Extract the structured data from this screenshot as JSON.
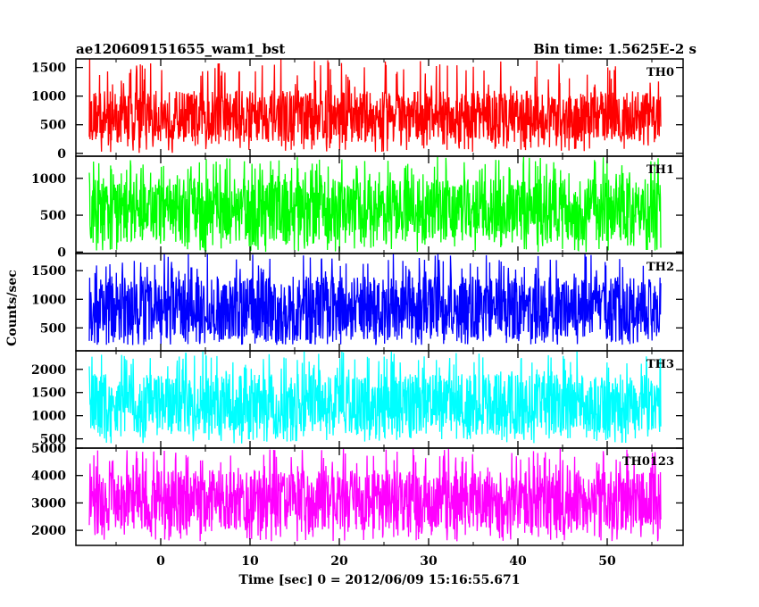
{
  "header": {
    "left_title": "ae120609151655_wam1_bst",
    "right_title": "Bin time: 1.5625E-2 s"
  },
  "x_axis": {
    "label": "Time [sec] 0 = 2012/06/09 15:16:55.671",
    "range": [
      -9.5,
      58.5
    ],
    "ticks": [
      0,
      10,
      20,
      30,
      40,
      50
    ],
    "tick_labels": [
      "0",
      "10",
      "20",
      "30",
      "40",
      "50"
    ]
  },
  "y_axis_label": "Counts/sec",
  "chart_data": [
    {
      "type": "line",
      "name": "TH0",
      "color": "#ff0000",
      "x_range": [
        -8,
        56
      ],
      "ylim": [
        -50,
        1650
      ],
      "ticks": [
        0,
        500,
        1000,
        1500
      ],
      "tick_labels": [
        "0",
        "500",
        "1000",
        "1500"
      ],
      "typical_range": [
        200,
        1100
      ],
      "mean": 600,
      "extremes": [
        0,
        1650
      ]
    },
    {
      "type": "line",
      "name": "TH1",
      "color": "#00ff00",
      "x_range": [
        -8,
        56
      ],
      "ylim": [
        -20,
        1300
      ],
      "ticks": [
        0,
        500,
        1000
      ],
      "tick_labels": [
        "0",
        "500",
        "1000"
      ],
      "typical_range": [
        150,
        1000
      ],
      "mean": 550,
      "extremes": [
        0,
        1300
      ]
    },
    {
      "type": "line",
      "name": "TH2",
      "color": "#0000ff",
      "x_range": [
        -8,
        56
      ],
      "ylim": [
        100,
        1800
      ],
      "ticks": [
        500,
        1000,
        1500
      ],
      "tick_labels": [
        "500",
        "1000",
        "1500"
      ],
      "typical_range": [
        300,
        1400
      ],
      "mean": 800,
      "extremes": [
        200,
        1800
      ]
    },
    {
      "type": "line",
      "name": "TH3",
      "color": "#00ffff",
      "x_range": [
        -8,
        56
      ],
      "ylim": [
        300,
        2400
      ],
      "ticks": [
        500,
        1000,
        1500,
        2000
      ],
      "tick_labels": [
        "500",
        "1000",
        "1500",
        "2000"
      ],
      "typical_range": [
        600,
        1900
      ],
      "mean": 1150,
      "extremes": [
        400,
        2400
      ]
    },
    {
      "type": "line",
      "name": "TH0123",
      "color": "#ff00ff",
      "x_range": [
        -8,
        56
      ],
      "ylim": [
        1450,
        5000
      ],
      "ticks": [
        2000,
        3000,
        4000,
        5000
      ],
      "tick_labels": [
        "2000",
        "3000",
        "4000",
        "5000"
      ],
      "typical_range": [
        2000,
        4200
      ],
      "mean": 3000,
      "extremes": [
        1600,
        5000
      ]
    }
  ]
}
